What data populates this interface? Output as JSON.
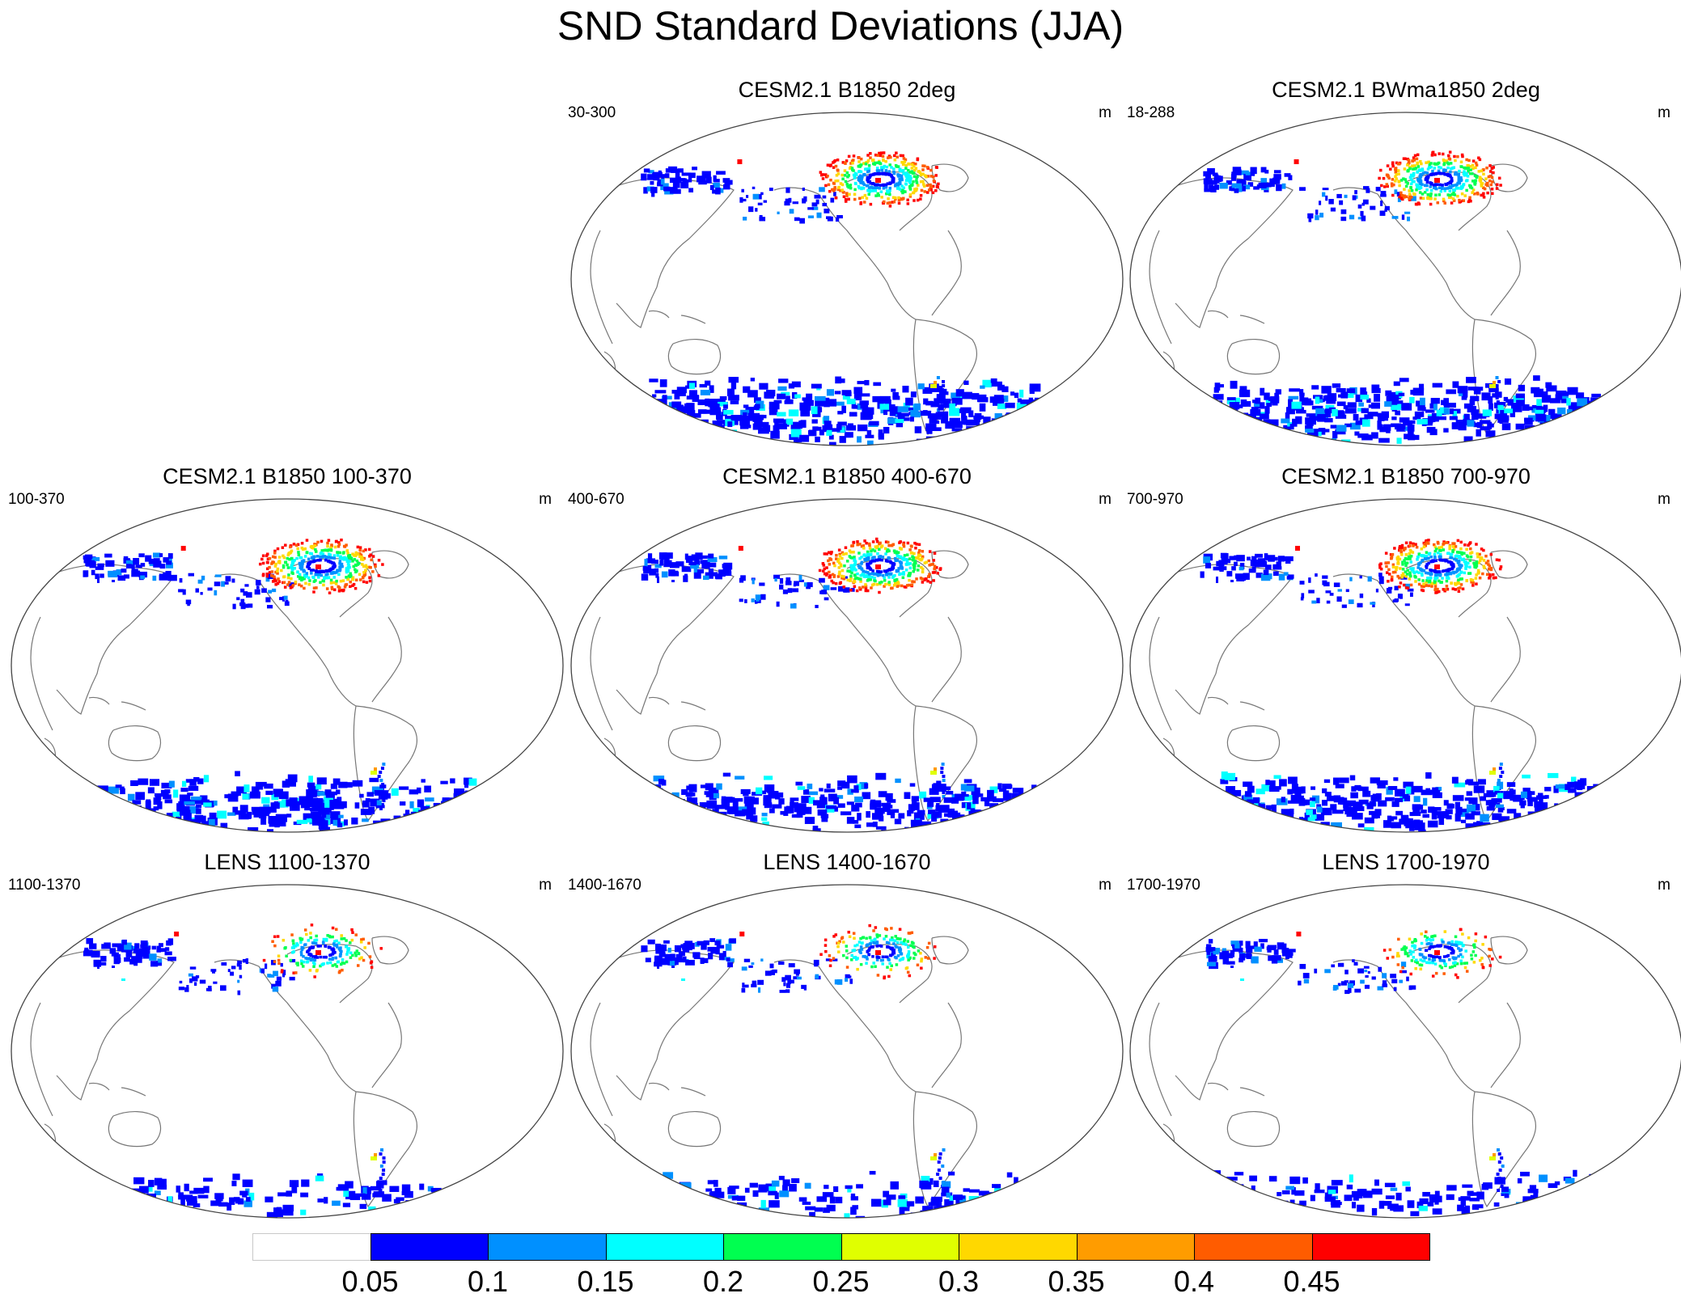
{
  "figure": {
    "title": "SND Standard Deviations (JJA)"
  },
  "panels": [
    {
      "id": "p1",
      "title": "CESM2.1 B1850 2deg",
      "range": "30-300",
      "unit": "m",
      "intensity": 1.0,
      "antarctic_coverage": "high"
    },
    {
      "id": "p2",
      "title": "CESM2.1 BWma1850 2deg",
      "range": "18-288",
      "unit": "m",
      "intensity": 0.95,
      "antarctic_coverage": "high"
    },
    {
      "id": "p3",
      "title": "CESM2.1 B1850 100-370",
      "range": "100-370",
      "unit": "m",
      "intensity": 1.0,
      "antarctic_coverage": "medium"
    },
    {
      "id": "p4",
      "title": "CESM2.1 B1850 400-670",
      "range": "400-670",
      "unit": "m",
      "intensity": 1.0,
      "antarctic_coverage": "medium"
    },
    {
      "id": "p5",
      "title": "CESM2.1 B1850 700-970",
      "range": "700-970",
      "unit": "m",
      "intensity": 1.0,
      "antarctic_coverage": "medium"
    },
    {
      "id": "p6",
      "title": "LENS 1100-1370",
      "range": "1100-1370",
      "unit": "m",
      "intensity": 0.6,
      "antarctic_coverage": "low"
    },
    {
      "id": "p7",
      "title": "LENS 1400-1670",
      "range": "1400-1670",
      "unit": "m",
      "intensity": 0.6,
      "antarctic_coverage": "low"
    },
    {
      "id": "p8",
      "title": "LENS 1700-1970",
      "range": "1700-1970",
      "unit": "m",
      "intensity": 0.6,
      "antarctic_coverage": "low"
    }
  ],
  "colorbar": {
    "levels": [
      "0.05",
      "0.1",
      "0.15",
      "0.2",
      "0.25",
      "0.3",
      "0.35",
      "0.4",
      "0.45"
    ],
    "colors": [
      "#ffffff",
      "#0000ff",
      "#0090ff",
      "#00ffff",
      "#00ff50",
      "#e0ff00",
      "#ffd800",
      "#ff9c00",
      "#ff5c00",
      "#ff0000"
    ]
  },
  "chart_data": {
    "type": "map",
    "variable": "SND",
    "statistic": "Standard Deviation",
    "season": "JJA",
    "unit": "m",
    "colorbar_levels": [
      0.05,
      0.1,
      0.15,
      0.2,
      0.25,
      0.3,
      0.35,
      0.4,
      0.45
    ]
  }
}
